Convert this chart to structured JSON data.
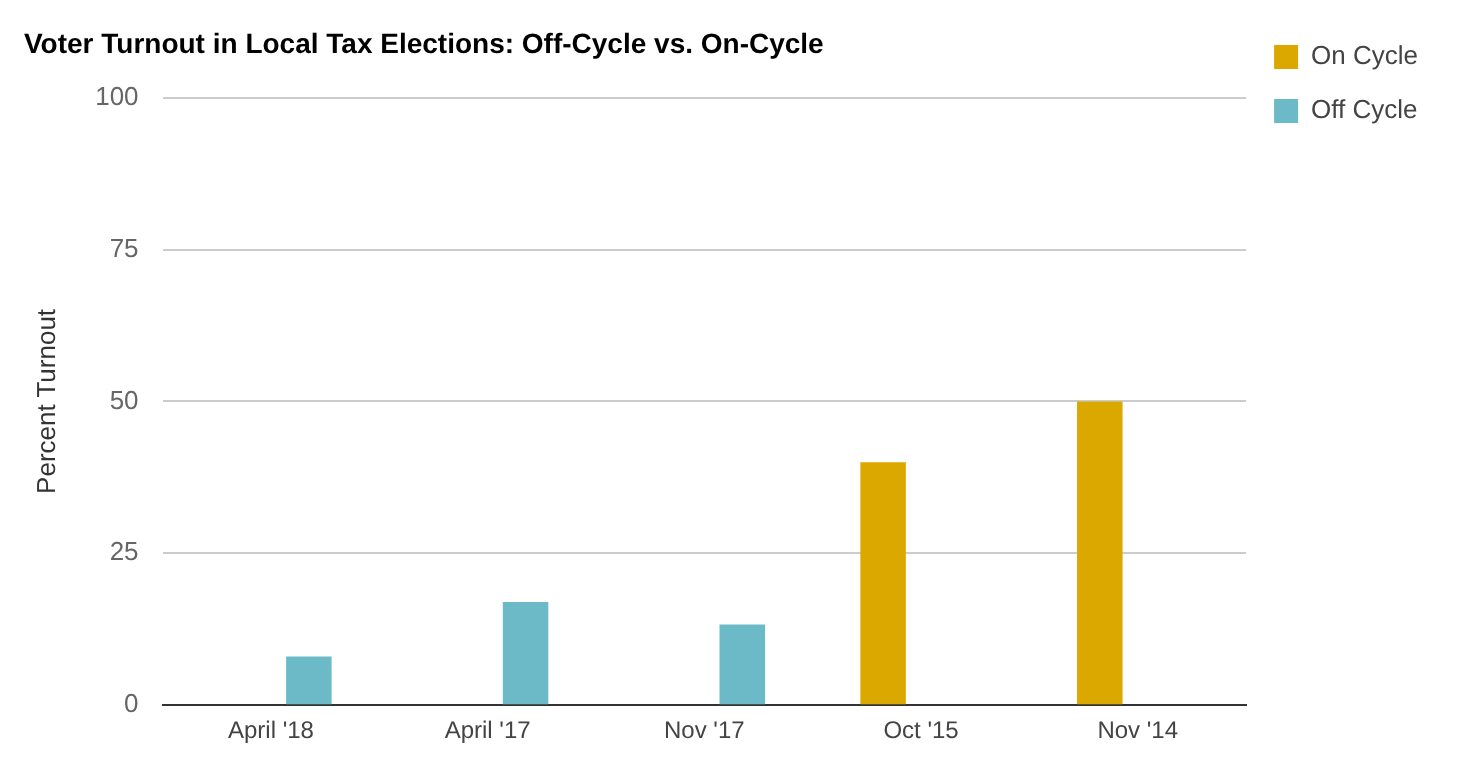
{
  "chart_data": {
    "type": "bar",
    "title": "Voter Turnout in Local Tax Elections: Off-Cycle vs. On-Cycle",
    "ylabel": "Percent Turnout",
    "categories": [
      "April '18",
      "April '17",
      "Nov '17",
      "Oct '15",
      "Nov '14"
    ],
    "series": [
      {
        "name": "On Cycle",
        "color": "#dba800",
        "values": [
          null,
          null,
          null,
          40,
          50
        ]
      },
      {
        "name": "Off Cycle",
        "color": "#6cbac8",
        "values": [
          8,
          17,
          13.3,
          null,
          null
        ]
      }
    ],
    "ylim": [
      0,
      100
    ],
    "yticks": [
      0,
      25,
      50,
      75,
      100
    ],
    "grid": "y",
    "legend": "top right"
  }
}
